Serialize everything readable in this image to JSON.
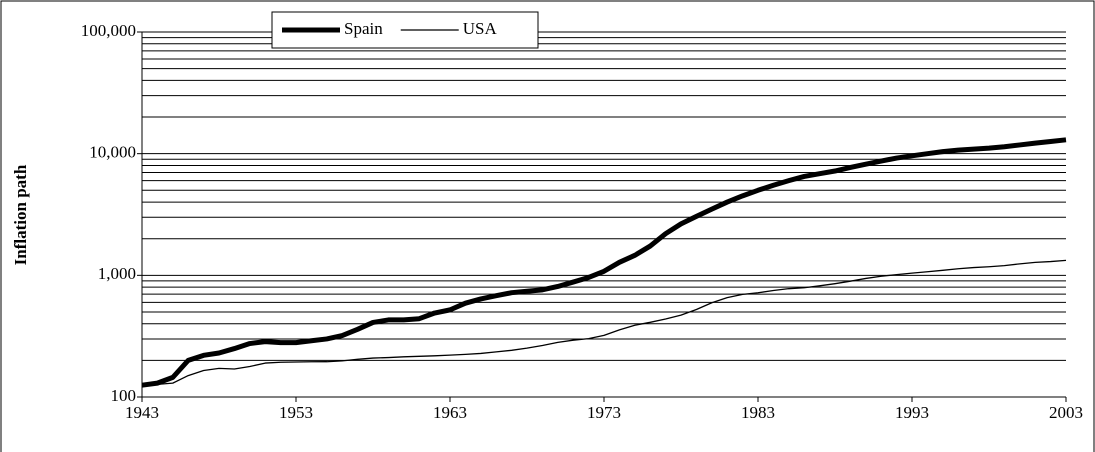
{
  "chart_data": {
    "type": "line",
    "ylabel": "Inflation path",
    "log_y": true,
    "grid": true,
    "minor_grid": true,
    "legend": "top",
    "x": [
      1943,
      1944,
      1945,
      1946,
      1947,
      1948,
      1949,
      1950,
      1951,
      1952,
      1953,
      1954,
      1955,
      1956,
      1957,
      1958,
      1959,
      1960,
      1961,
      1962,
      1963,
      1964,
      1965,
      1966,
      1967,
      1968,
      1969,
      1970,
      1971,
      1972,
      1973,
      1974,
      1975,
      1976,
      1977,
      1978,
      1979,
      1980,
      1981,
      1982,
      1983,
      1984,
      1985,
      1986,
      1987,
      1988,
      1989,
      1990,
      1991,
      1992,
      1993,
      1994,
      1995,
      1996,
      1997,
      1998,
      1999,
      2000,
      2001,
      2002,
      2003
    ],
    "series": [
      {
        "name": "Spain",
        "color": "#000000",
        "width": 5,
        "values": [
          125,
          130,
          145,
          200,
          220,
          230,
          250,
          275,
          285,
          280,
          280,
          290,
          300,
          320,
          360,
          410,
          430,
          430,
          440,
          490,
          520,
          590,
          640,
          680,
          720,
          740,
          760,
          810,
          880,
          960,
          1080,
          1280,
          1460,
          1740,
          2200,
          2650,
          3050,
          3500,
          4000,
          4500,
          5000,
          5500,
          6000,
          6500,
          6850,
          7200,
          7700,
          8200,
          8700,
          9200,
          9600,
          10000,
          10400,
          10700,
          10900,
          11100,
          11400,
          11800,
          12200,
          12600,
          13000
        ]
      },
      {
        "name": "USA",
        "color": "#000000",
        "width": 1.3,
        "values": [
          125,
          127,
          130,
          150,
          165,
          172,
          170,
          178,
          190,
          193,
          194,
          195,
          195,
          198,
          204,
          209,
          211,
          214,
          216,
          218,
          221,
          224,
          228,
          235,
          242,
          252,
          265,
          281,
          293,
          302,
          321,
          356,
          389,
          411,
          438,
          471,
          524,
          595,
          656,
          697,
          719,
          750,
          777,
          791,
          820,
          854,
          895,
          943,
          983,
          1013,
          1043,
          1070,
          1100,
          1132,
          1158,
          1176,
          1202,
          1243,
          1278,
          1298,
          1328
        ]
      }
    ],
    "xlim": [
      1943,
      2003
    ],
    "xticks": [
      1943,
      1953,
      1963,
      1973,
      1983,
      1993,
      2003
    ],
    "ylim": [
      100,
      100000
    ],
    "yticks": [
      100,
      {
        "value": 1000,
        "label": "1,000"
      },
      {
        "value": 10000,
        "label": "10,000"
      },
      {
        "value": 100000,
        "label": "100,000"
      }
    ]
  }
}
